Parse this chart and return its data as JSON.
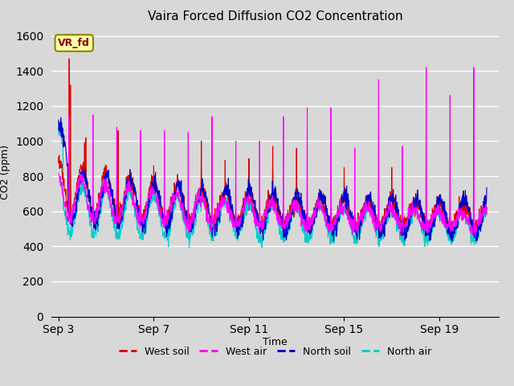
{
  "title": "Vaira Forced Diffusion CO2 Concentration",
  "xlabel": "Time",
  "ylabel": "CO2 (ppm)",
  "ylim": [
    0,
    1650
  ],
  "yticks": [
    0,
    200,
    400,
    600,
    800,
    1000,
    1200,
    1400,
    1600
  ],
  "background_color": "#d8d8d8",
  "plot_bg_color": "#d8d8d8",
  "legend_entries": [
    "West soil",
    "West air",
    "North soil",
    "North air"
  ],
  "legend_colors": [
    "#dd0000",
    "#ff00ff",
    "#0000cc",
    "#00cccc"
  ],
  "line_colors": {
    "west_soil": "#dd0000",
    "west_air": "#ff00ff",
    "north_soil": "#0000cc",
    "north_air": "#00cccc"
  },
  "annotation_text": "VR_fd",
  "annotation_box_color": "#ffffaa",
  "annotation_text_color": "#880000",
  "annotation_border_color": "#888800",
  "x_tick_labels": [
    "Sep 3",
    "Sep 7",
    "Sep 11",
    "Sep 15",
    "Sep 19"
  ],
  "x_tick_days": [
    0,
    4,
    8,
    12,
    16
  ],
  "n_days": 18,
  "pts_per_day": 96,
  "seed": 42
}
